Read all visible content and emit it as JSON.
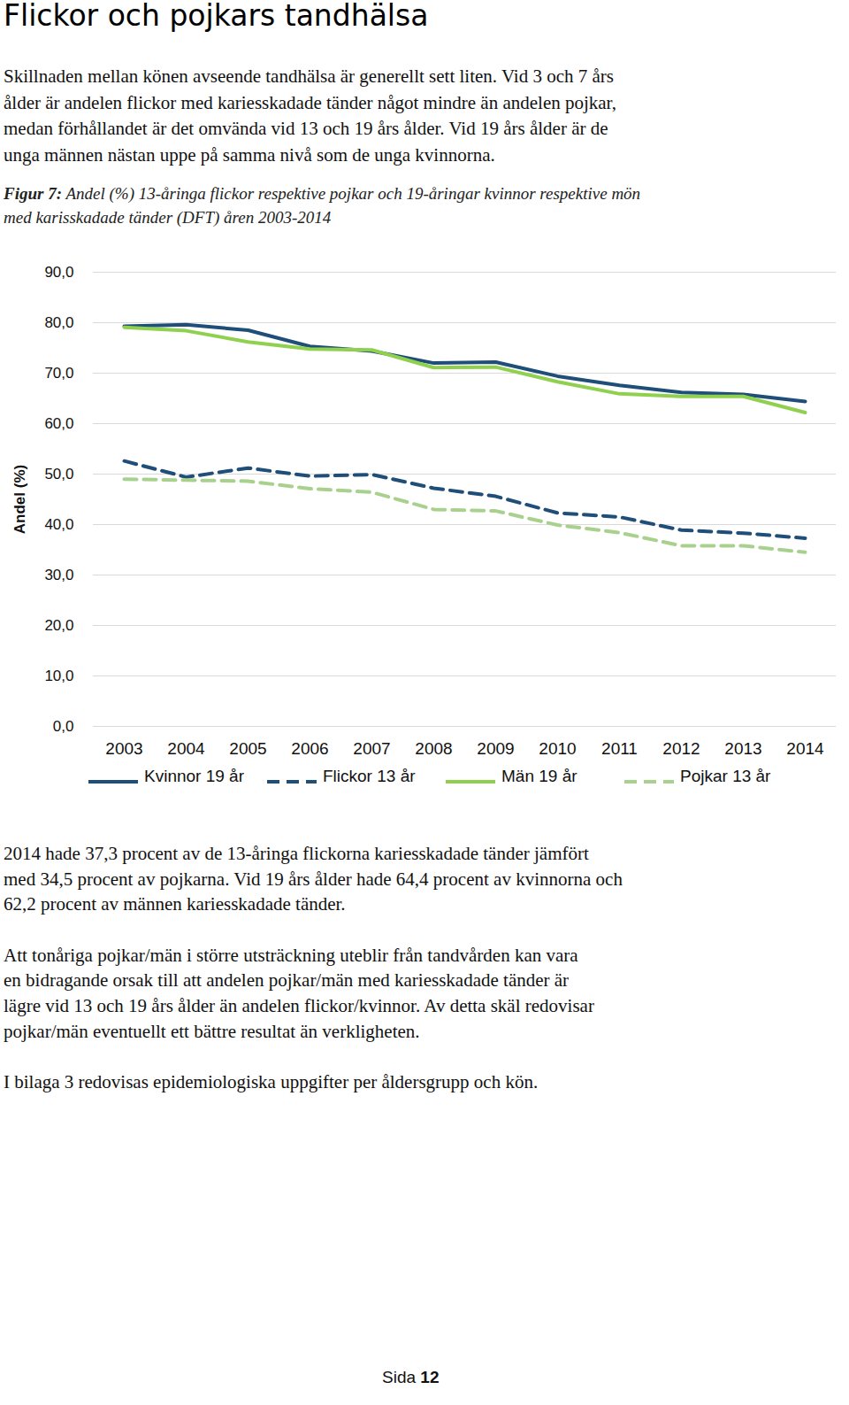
{
  "heading": "Flickor och pojkars tandhälsa",
  "intro_lines": [
    "Skillnaden mellan könen avseende tandhälsa är generellt sett liten. Vid 3 och 7 års",
    "ålder är andelen flickor med kariesskadade tänder något mindre än andelen pojkar,",
    "medan förhållandet är det omvända vid 13 och 19 års ålder. Vid 19 års ålder är de",
    "unga männen nästan uppe på samma nivå som de unga kvinnorna."
  ],
  "figure_caption": {
    "label": "Figur 7:",
    "lines": [
      "Andel (%) 13-åringa flickor respektive pojkar och 19-åringar kvinnor respektive mön",
      "med karisskadade tänder (DFT) åren 2003-2014"
    ]
  },
  "chart_data": {
    "type": "line",
    "y_label": "Andel (%)",
    "categories": [
      "2003",
      "2004",
      "2005",
      "2006",
      "2007",
      "2008",
      "2009",
      "2010",
      "2011",
      "2012",
      "2013",
      "2014"
    ],
    "series": [
      {
        "name": "Kvinnor 19 år",
        "color": "#1f4e79",
        "line_style": "solid",
        "values": [
          79.3,
          79.6,
          78.5,
          75.3,
          74.4,
          72.0,
          72.2,
          69.4,
          67.6,
          66.2,
          65.8,
          64.4
        ]
      },
      {
        "name": "Flickor 13 år",
        "color": "#1f4e79",
        "line_style": "dashed",
        "values": [
          52.6,
          49.4,
          51.2,
          49.6,
          49.9,
          47.2,
          45.6,
          42.3,
          41.5,
          38.9,
          38.3,
          37.3
        ]
      },
      {
        "name": "Män 19 år",
        "color": "#8fd14f",
        "line_style": "solid",
        "values": [
          79.1,
          78.4,
          76.2,
          74.8,
          74.6,
          71.1,
          71.2,
          68.3,
          65.9,
          65.4,
          65.4,
          62.2
        ]
      },
      {
        "name": "Pojkar 13 år",
        "color": "#a9d18e",
        "line_style": "dashed",
        "values": [
          49.0,
          48.8,
          48.6,
          47.1,
          46.4,
          43.0,
          42.7,
          39.9,
          38.4,
          35.8,
          35.8,
          34.5
        ]
      }
    ],
    "ylim": [
      0,
      90
    ],
    "yticks": [
      {
        "value": 0,
        "label": "0,0"
      },
      {
        "value": 10,
        "label": "10,0"
      },
      {
        "value": 20,
        "label": "20,0"
      },
      {
        "value": 30,
        "label": "30,0"
      },
      {
        "value": 40,
        "label": "40,0"
      },
      {
        "value": 50,
        "label": "50,0"
      },
      {
        "value": 60,
        "label": "60,0"
      },
      {
        "value": 70,
        "label": "70,0"
      },
      {
        "value": 80,
        "label": "80,0"
      },
      {
        "value": 90,
        "label": "90,0"
      }
    ],
    "grid": true,
    "legend": "bottom"
  },
  "after_paragraphs": [
    [
      "2014 hade 37,3 procent av de 13-åringa flickorna kariesskadade tänder jämfört",
      "med 34,5 procent av pojkarna. Vid 19 års ålder hade 64,4 procent av kvinnorna och",
      "62,2 procent av männen kariesskadade tänder."
    ],
    [
      "Att tonåriga pojkar/män i större utsträckning uteblir från tandvården kan vara",
      "en bidragande orsak till att andelen pojkar/män med kariesskadade tänder är",
      "lägre vid 13 och 19 års ålder än andelen flickor/kvinnor. Av detta skäl redovisar",
      "pojkar/män eventuellt ett bättre resultat än verkligheten."
    ],
    [
      "I bilaga 3 redovisas epidemiologiska uppgifter per åldersgrupp och kön."
    ]
  ],
  "page": {
    "label": "Sida",
    "number": "12"
  }
}
